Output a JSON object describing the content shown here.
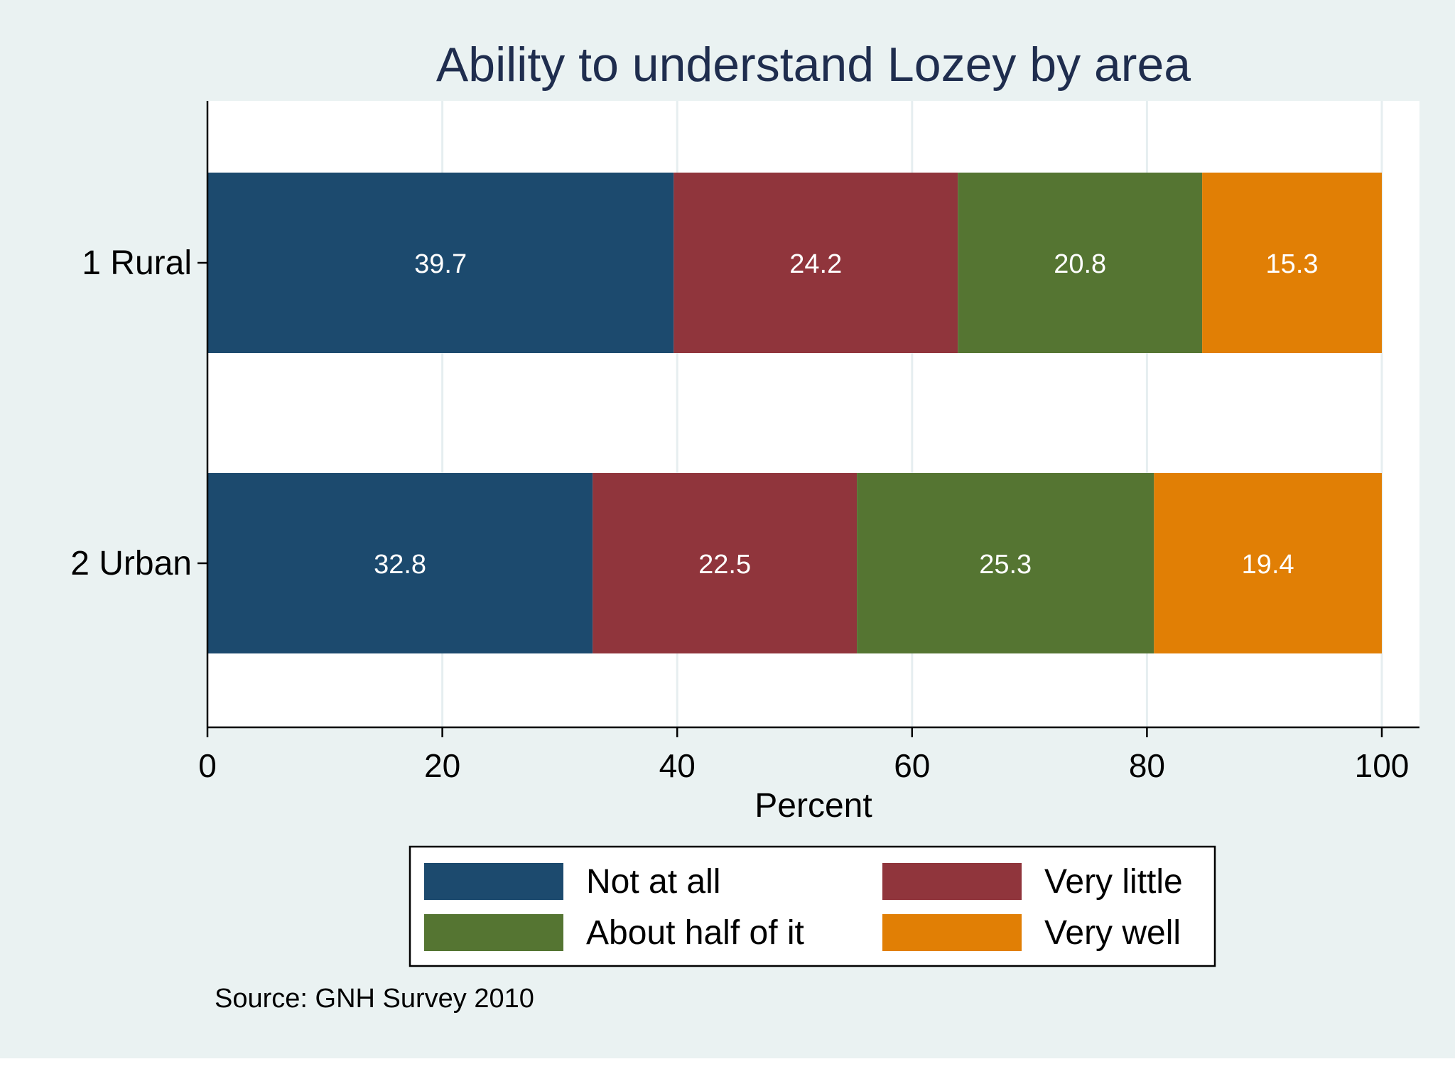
{
  "chart_data": {
    "type": "bar",
    "orientation": "horizontal",
    "stacked": true,
    "title": "Ability to understand Lozey by area",
    "xlabel": "Percent",
    "ylabel": "",
    "xlim": [
      0,
      100
    ],
    "x_ticks": [
      "0",
      "20",
      "40",
      "60",
      "80",
      "100"
    ],
    "grid": true,
    "categories": [
      "1 Rural",
      "2 Urban"
    ],
    "series": [
      {
        "name": "Not at all",
        "color": "#1c4a6e",
        "values": [
          39.7,
          32.8
        ]
      },
      {
        "name": "Very little",
        "color": "#90353c",
        "values": [
          24.2,
          22.5
        ]
      },
      {
        "name": "About half of it",
        "color": "#557532",
        "values": [
          20.8,
          25.3
        ]
      },
      {
        "name": "Very well",
        "color": "#e17f05",
        "values": [
          15.3,
          19.4
        ]
      }
    ],
    "data_labels": [
      [
        "39.7",
        "32.8"
      ],
      [
        "24.2",
        "22.5"
      ],
      [
        "20.8",
        "25.3"
      ],
      [
        "15.3",
        "19.4"
      ]
    ],
    "legend_position": "bottom",
    "note": "Source: GNH Survey 2010"
  },
  "colors": {
    "outer_background": "#eaf2f2",
    "plot_background": "#ffffff",
    "grid": "#e6eef0",
    "axis": "#000000",
    "title": "#1f2d4e",
    "data_label": "#ffffff"
  }
}
